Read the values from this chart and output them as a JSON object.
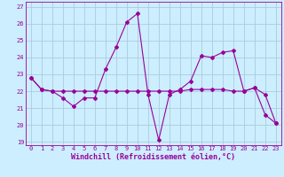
{
  "xlabel": "Windchill (Refroidissement éolien,°C)",
  "bg_color": "#cceeff",
  "grid_color": "#aaccdd",
  "line_color": "#990099",
  "xlim_min": -0.5,
  "xlim_max": 23.5,
  "ylim_min": 18.8,
  "ylim_max": 27.3,
  "yticks": [
    19,
    20,
    21,
    22,
    23,
    24,
    25,
    26,
    27
  ],
  "xticks": [
    0,
    1,
    2,
    3,
    4,
    5,
    6,
    7,
    8,
    9,
    10,
    11,
    12,
    13,
    14,
    15,
    16,
    17,
    18,
    19,
    20,
    21,
    22,
    23
  ],
  "series1_x": [
    0,
    1,
    2,
    3,
    4,
    5,
    6,
    7,
    8,
    9,
    10,
    11,
    12,
    13,
    14,
    15,
    16,
    17,
    18,
    19,
    20,
    21,
    22,
    23
  ],
  "series1_y": [
    22.8,
    22.1,
    22.0,
    21.6,
    21.1,
    21.6,
    21.6,
    23.3,
    24.6,
    26.1,
    26.6,
    21.8,
    19.1,
    21.8,
    22.1,
    22.6,
    24.1,
    24.0,
    24.3,
    24.4,
    22.0,
    22.2,
    20.6,
    20.1
  ],
  "series2_x": [
    0,
    1,
    2,
    3,
    4,
    5,
    6,
    7,
    8,
    9,
    10,
    11,
    12,
    13,
    14,
    15,
    16,
    17,
    18,
    19,
    20,
    21,
    22,
    23
  ],
  "series2_y": [
    22.8,
    22.1,
    22.0,
    22.0,
    22.0,
    22.0,
    22.0,
    22.0,
    22.0,
    22.0,
    22.0,
    22.0,
    22.0,
    22.0,
    22.0,
    22.1,
    22.1,
    22.1,
    22.1,
    22.0,
    22.0,
    22.2,
    21.8,
    20.1
  ],
  "marker": "D",
  "markersize": 2.0,
  "linewidth": 0.8,
  "tick_fontsize": 5.0,
  "xlabel_fontsize": 6.0
}
